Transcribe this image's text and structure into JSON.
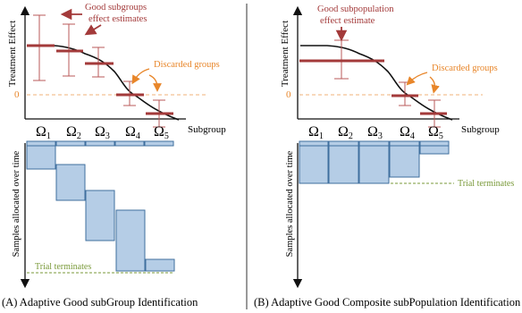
{
  "colors": {
    "estimate": "#a33a3a",
    "discarded": "#e8862a",
    "block_fill": "#b5cde6",
    "block_stroke": "#3f6f9e",
    "terminate": "#7a9a3a",
    "curve": "#111111"
  },
  "panel_a": {
    "y_axis_label": "Treatment Effect",
    "zero_label": "0",
    "x_axis_label": "Subgroup",
    "subgroups": [
      "Ω",
      "Ω",
      "Ω",
      "Ω",
      "Ω"
    ],
    "subscripts": [
      "1",
      "2",
      "3",
      "4",
      "5"
    ],
    "good_annotation_line1": "Good subgroups",
    "good_annotation_line2": "effect estimates",
    "discarded_annotation": "Discarded groups",
    "time_axis_label": "Samples allocated over time",
    "terminate_label": "Trial terminates",
    "caption": "(A) Adaptive Good subGroup Identification"
  },
  "panel_b": {
    "y_axis_label": "Treatment Effect",
    "zero_label": "0",
    "x_axis_label": "Subgroup",
    "subgroups": [
      "Ω",
      "Ω",
      "Ω",
      "Ω",
      "Ω"
    ],
    "subscripts": [
      "1",
      "2",
      "3",
      "4",
      "5"
    ],
    "good_annotation_line1": "Good subpopulation",
    "good_annotation_line2": "effect estimate",
    "discarded_annotation": "Discarded groups",
    "time_axis_label": "Samples allocated over time",
    "terminate_label": "Trial terminates",
    "caption": "(B) Adaptive Good Composite subPopulation Identification"
  }
}
